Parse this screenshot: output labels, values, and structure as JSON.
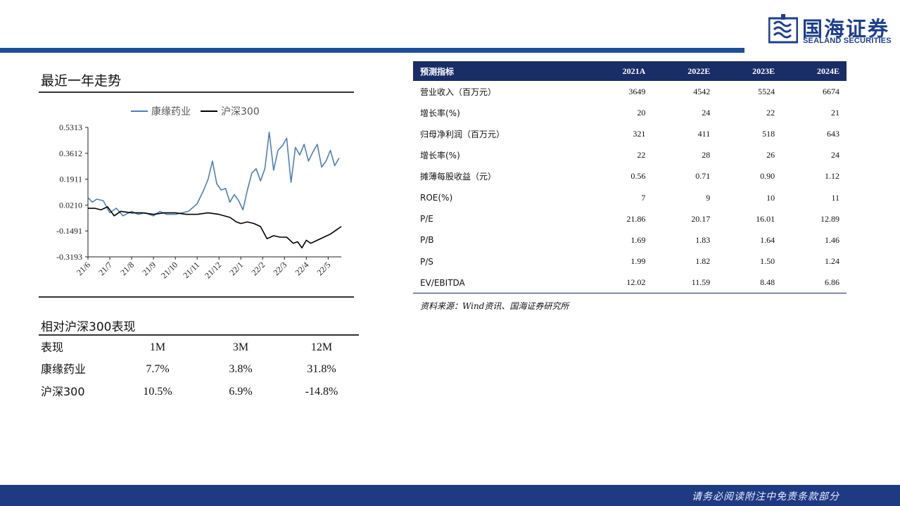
{
  "brand": {
    "name_cn": "国海证券",
    "name_en": "SEALAND SECURITIES",
    "primary_color": "#1b4f9c",
    "header_color": "#192d66"
  },
  "trend": {
    "title": "最近一年走势"
  },
  "chart_data": {
    "type": "line",
    "yticks": [
      "0.5313",
      "0.3612",
      "0.1911",
      "0.0210",
      "-0.1491",
      "-0.3193"
    ],
    "ylim": [
      -0.3193,
      0.5313
    ],
    "xticks": [
      "21/6",
      "21/7",
      "21/8",
      "21/9",
      "21/10",
      "21/11",
      "21/12",
      "22/1",
      "22/2",
      "22/3",
      "22/4",
      "22/5"
    ],
    "series": [
      {
        "name": "康缘药业",
        "color": "#4e7fb8",
        "x": [
          0,
          0.2,
          0.4,
          0.7,
          1.0,
          1.3,
          1.6,
          2.0,
          2.3,
          2.6,
          3.0,
          3.3,
          3.6,
          4.0,
          4.3,
          4.6,
          5.0,
          5.3,
          5.5,
          5.7,
          5.9,
          6.1,
          6.3,
          6.5,
          6.7,
          6.9,
          7.1,
          7.3,
          7.5,
          7.7,
          7.9,
          8.1,
          8.3,
          8.5,
          8.7,
          8.9,
          9.1,
          9.3,
          9.5,
          9.7,
          9.9,
          10.1,
          10.3,
          10.5,
          10.7,
          10.9,
          11.1,
          11.3,
          11.5
        ],
        "y": [
          0.07,
          0.04,
          0.06,
          0.05,
          -0.03,
          0.0,
          -0.05,
          -0.02,
          -0.04,
          -0.03,
          -0.05,
          -0.02,
          -0.04,
          -0.04,
          -0.03,
          -0.02,
          0.03,
          0.12,
          0.19,
          0.31,
          0.16,
          0.12,
          0.13,
          0.04,
          0.09,
          0.05,
          -0.01,
          0.12,
          0.23,
          0.26,
          0.18,
          0.26,
          0.5,
          0.25,
          0.38,
          0.41,
          0.46,
          0.17,
          0.4,
          0.35,
          0.42,
          0.31,
          0.37,
          0.42,
          0.27,
          0.31,
          0.38,
          0.28,
          0.33
        ]
      },
      {
        "name": "沪深300",
        "color": "#000000",
        "x": [
          0,
          0.3,
          0.6,
          0.9,
          1.2,
          1.5,
          2.0,
          2.5,
          3.0,
          3.5,
          4.0,
          4.5,
          5.0,
          5.5,
          6.0,
          6.5,
          6.8,
          7.0,
          7.3,
          7.6,
          7.9,
          8.2,
          8.5,
          8.8,
          9.1,
          9.4,
          9.6,
          9.8,
          10.0,
          10.2,
          10.5,
          10.8,
          11.1,
          11.4,
          11.6
        ],
        "y": [
          0.0,
          0.0,
          -0.01,
          0.01,
          -0.05,
          -0.02,
          -0.03,
          -0.03,
          -0.04,
          -0.03,
          -0.03,
          -0.04,
          -0.04,
          -0.03,
          -0.04,
          -0.06,
          -0.09,
          -0.1,
          -0.09,
          -0.1,
          -0.12,
          -0.2,
          -0.18,
          -0.19,
          -0.19,
          -0.23,
          -0.22,
          -0.26,
          -0.21,
          -0.23,
          -0.21,
          -0.19,
          -0.17,
          -0.14,
          -0.12
        ]
      }
    ]
  },
  "relative": {
    "title": "相对沪深300表现",
    "headers": [
      "表现",
      "1M",
      "3M",
      "12M"
    ],
    "rows": [
      [
        "康缘药业",
        "7.7%",
        "3.8%",
        "31.8%"
      ],
      [
        "沪深300",
        "10.5%",
        "6.9%",
        "-14.8%"
      ]
    ]
  },
  "forecast": {
    "headers": [
      "预测指标",
      "2021A",
      "2022E",
      "2023E",
      "2024E"
    ],
    "rows": [
      [
        "营业收入（百万元）",
        "3649",
        "4542",
        "5524",
        "6674"
      ],
      [
        "增长率(%)",
        "20",
        "24",
        "22",
        "21"
      ],
      [
        "归母净利润（百万元）",
        "321",
        "411",
        "518",
        "643"
      ],
      [
        "增长率(%)",
        "22",
        "28",
        "26",
        "24"
      ],
      [
        "摊薄每股收益（元）",
        "0.56",
        "0.71",
        "0.90",
        "1.12"
      ],
      [
        "ROE(%)",
        "7",
        "9",
        "10",
        "11"
      ],
      [
        "P/E",
        "21.86",
        "20.17",
        "16.01",
        "12.89"
      ],
      [
        "P/B",
        "1.69",
        "1.83",
        "1.64",
        "1.46"
      ],
      [
        "P/S",
        "1.99",
        "1.82",
        "1.50",
        "1.24"
      ],
      [
        "EV/EBITDA",
        "12.02",
        "11.59",
        "8.48",
        "6.86"
      ]
    ],
    "source": "资料来源：Wind资讯、国海证券研究所"
  },
  "footer": {
    "disclaimer": "请务必阅读附注中免责条款部分"
  }
}
